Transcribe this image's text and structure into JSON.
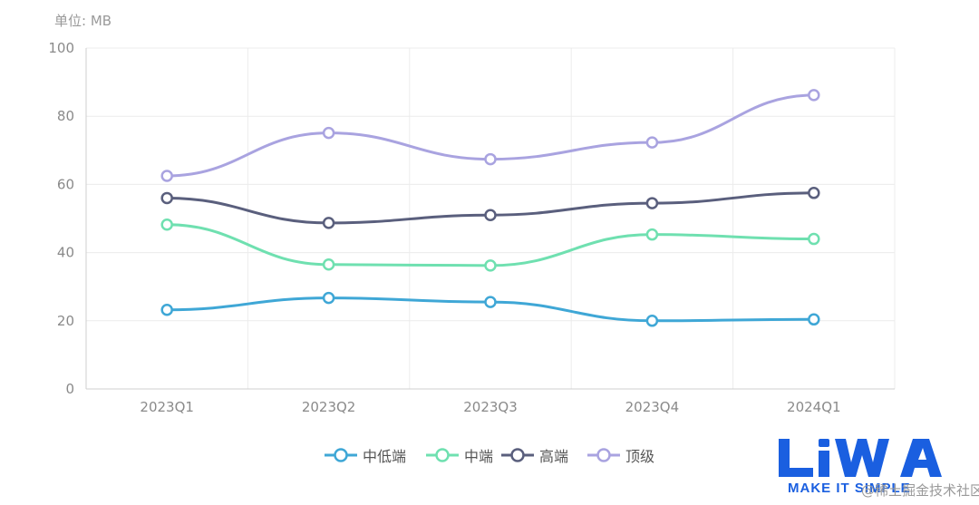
{
  "chart_data": {
    "type": "line",
    "unit_label": "单位: MB",
    "categories": [
      "2023Q1",
      "2023Q2",
      "2023Q3",
      "2023Q4",
      "2024Q1"
    ],
    "ylim": [
      0,
      100
    ],
    "yticks": [
      0,
      20,
      40,
      60,
      80,
      100
    ],
    "grid": true,
    "smooth": true,
    "legend_position": "bottom-center",
    "series": [
      {
        "name": "中低端",
        "color": "#3fa7d6",
        "values": [
          23.2,
          26.7,
          25.5,
          20.0,
          20.4
        ]
      },
      {
        "name": "中端",
        "color": "#6fe0b0",
        "values": [
          48.2,
          36.5,
          36.2,
          45.3,
          44.0
        ]
      },
      {
        "name": "高端",
        "color": "#5a5f7d",
        "values": [
          56.0,
          48.7,
          51.0,
          54.5,
          57.5
        ]
      },
      {
        "name": "顶级",
        "color": "#a9a3e0",
        "values": [
          62.5,
          75.1,
          67.4,
          72.3,
          86.2
        ]
      }
    ]
  },
  "watermark": {
    "logo_text": "LiWA",
    "tagline": "MAKE IT SIMPLE",
    "site_text": "@稀土掘金技术社区",
    "color": "#1a5fe0"
  }
}
